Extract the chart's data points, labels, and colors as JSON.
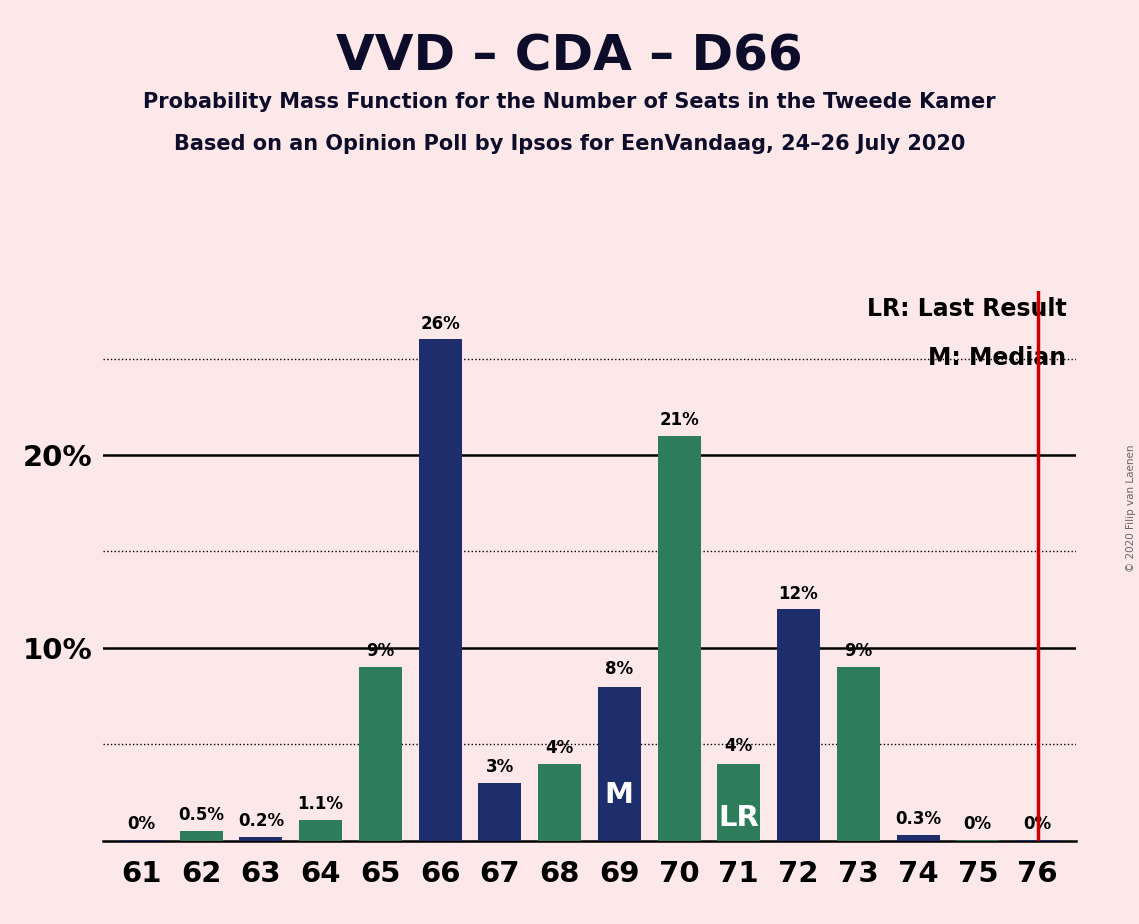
{
  "title": "VVD – CDA – D66",
  "subtitle1": "Probability Mass Function for the Number of Seats in the Tweede Kamer",
  "subtitle2": "Based on an Opinion Poll by Ipsos for EenVandaag, 24–26 July 2020",
  "copyright": "© 2020 Filip van Laenen",
  "seats": [
    61,
    62,
    63,
    64,
    65,
    66,
    67,
    68,
    69,
    70,
    71,
    72,
    73,
    74,
    75,
    76
  ],
  "values": [
    0.05,
    0.5,
    0.2,
    1.1,
    9.0,
    26.0,
    3.0,
    4.0,
    8.0,
    21.0,
    4.0,
    12.0,
    9.0,
    0.3,
    0.05,
    0.05
  ],
  "labels": [
    "0%",
    "0.5%",
    "0.2%",
    "1.1%",
    "9%",
    "26%",
    "3%",
    "4%",
    "8%",
    "21%",
    "4%",
    "12%",
    "9%",
    "0.3%",
    "0%",
    "0%"
  ],
  "colors": [
    "#1e2d6b",
    "#2e7d5a",
    "#1e2d6b",
    "#2e7d5a",
    "#2e7d5a",
    "#1e2d6b",
    "#1e2d6b",
    "#2e7d5a",
    "#1e2d6b",
    "#2e7d5a",
    "#2e7d5a",
    "#1e2d6b",
    "#2e7d5a",
    "#1e2d6b",
    "#2e7d5a",
    "#1e2d6b"
  ],
  "median_seat": 69,
  "lr_seat": 71,
  "lr_line_seat": 76,
  "background_color": "#fce8e8",
  "lr_line_color": "#cc0000",
  "legend_lr": "LR: Last Result",
  "legend_m": "M: Median",
  "ylim": [
    0,
    28.5
  ],
  "bar_width": 0.72
}
